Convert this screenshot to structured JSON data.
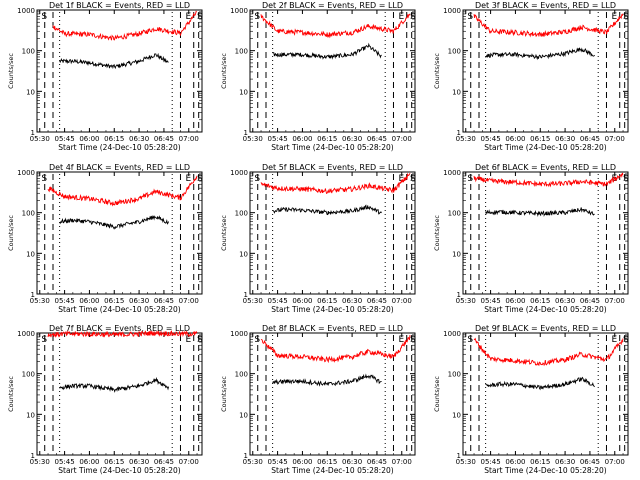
{
  "common": {
    "xlabel": "Start Time (24-Dec-10 05:28:20)",
    "ylabel": "Counts/sec",
    "x_ticks": [
      "05:30",
      "05:45",
      "06:00",
      "06:15",
      "06:30",
      "06:45",
      "07:00"
    ],
    "y_ticks": [
      "1",
      "10",
      "100",
      "1000"
    ],
    "y_scale": "log",
    "ylim": [
      1,
      1000
    ],
    "xlim_minutes": [
      "05:28:20",
      "07:08:00"
    ],
    "series_colors": {
      "events": "#000000",
      "lld": "#ff0000"
    },
    "marker_labels": {
      "s": "S",
      "e": "E"
    },
    "grid": false
  },
  "chart_data": [
    {
      "type": "line",
      "title": "Det 1f BLACK = Events, RED = LLD",
      "series": [
        {
          "name": "Events",
          "x": [
            "05:42",
            "05:50",
            "06:00",
            "06:15",
            "06:30",
            "06:40",
            "06:48"
          ],
          "values": [
            55,
            55,
            50,
            40,
            55,
            80,
            50
          ]
        },
        {
          "name": "LLD",
          "x": [
            "05:38",
            "05:45",
            "06:00",
            "06:15",
            "06:30",
            "06:40",
            "06:55",
            "07:05"
          ],
          "values": [
            400,
            260,
            250,
            200,
            260,
            350,
            270,
            900
          ]
        }
      ],
      "markers": [
        "S",
        "E",
        "S"
      ]
    },
    {
      "type": "line",
      "title": "Det 2f BLACK = Events, RED = LLD",
      "series": [
        {
          "name": "Events",
          "x": [
            "05:42",
            "05:50",
            "06:00",
            "06:15",
            "06:30",
            "06:40",
            "06:48"
          ],
          "values": [
            80,
            80,
            80,
            70,
            80,
            130,
            70
          ]
        },
        {
          "name": "LLD",
          "x": [
            "05:35",
            "05:45",
            "06:00",
            "06:15",
            "06:30",
            "06:40",
            "06:55",
            "07:05"
          ],
          "values": [
            700,
            300,
            280,
            250,
            280,
            400,
            300,
            800
          ]
        }
      ],
      "markers": [
        "S",
        "E",
        "S"
      ]
    },
    {
      "type": "line",
      "title": "Det 3f BLACK = Events, RED = LLD",
      "series": [
        {
          "name": "Events",
          "x": [
            "05:42",
            "05:50",
            "06:00",
            "06:15",
            "06:30",
            "06:40",
            "06:48"
          ],
          "values": [
            75,
            80,
            80,
            70,
            85,
            110,
            75
          ]
        },
        {
          "name": "LLD",
          "x": [
            "05:35",
            "05:45",
            "06:00",
            "06:15",
            "06:30",
            "06:40",
            "06:55",
            "07:05"
          ],
          "values": [
            700,
            300,
            280,
            250,
            290,
            380,
            280,
            800
          ]
        }
      ],
      "markers": [
        "S",
        "E",
        "S"
      ]
    },
    {
      "type": "line",
      "title": "Det 4f BLACK = Events, RED = LLD",
      "series": [
        {
          "name": "Events",
          "x": [
            "05:42",
            "05:50",
            "06:00",
            "06:15",
            "06:30",
            "06:40",
            "06:48"
          ],
          "values": [
            60,
            65,
            60,
            45,
            60,
            80,
            55
          ]
        },
        {
          "name": "LLD",
          "x": [
            "05:35",
            "05:45",
            "06:00",
            "06:15",
            "06:30",
            "06:40",
            "06:55",
            "07:05"
          ],
          "values": [
            400,
            250,
            220,
            170,
            220,
            330,
            230,
            800
          ]
        }
      ],
      "markers": [
        "S",
        "E",
        "S"
      ]
    },
    {
      "type": "line",
      "title": "Det 5f BLACK = Events, RED = LLD",
      "series": [
        {
          "name": "Events",
          "x": [
            "05:42",
            "05:50",
            "06:00",
            "06:15",
            "06:30",
            "06:40",
            "06:48"
          ],
          "values": [
            110,
            120,
            115,
            100,
            110,
            140,
            95
          ]
        },
        {
          "name": "LLD",
          "x": [
            "05:35",
            "05:45",
            "06:00",
            "06:15",
            "06:30",
            "06:40",
            "06:55",
            "07:05"
          ],
          "values": [
            500,
            400,
            380,
            340,
            380,
            460,
            350,
            900
          ]
        }
      ],
      "markers": [
        "S",
        "E",
        "S"
      ]
    },
    {
      "type": "line",
      "title": "Det 6f BLACK = Events, RED = LLD",
      "series": [
        {
          "name": "Events",
          "x": [
            "05:42",
            "05:50",
            "06:00",
            "06:15",
            "06:30",
            "06:40",
            "06:48"
          ],
          "values": [
            100,
            105,
            100,
            95,
            100,
            120,
            90
          ]
        },
        {
          "name": "LLD",
          "x": [
            "05:35",
            "05:45",
            "06:00",
            "06:15",
            "06:30",
            "06:40",
            "06:55",
            "07:05"
          ],
          "values": [
            700,
            600,
            560,
            500,
            520,
            580,
            500,
            900
          ]
        }
      ],
      "markers": [
        "S",
        "E",
        "S"
      ]
    },
    {
      "type": "line",
      "title": "Det 7f BLACK = Events, RED = LLD",
      "series": [
        {
          "name": "Events",
          "x": [
            "05:42",
            "05:50",
            "06:00",
            "06:15",
            "06:30",
            "06:40",
            "06:48"
          ],
          "values": [
            45,
            50,
            50,
            40,
            50,
            70,
            45
          ]
        },
        {
          "name": "LLD",
          "x": [
            "05:35",
            "05:45",
            "06:00",
            "06:15",
            "06:30",
            "06:40",
            "06:55",
            "07:05"
          ],
          "values": [
            900,
            950,
            950,
            900,
            950,
            1000,
            950,
            950
          ]
        }
      ],
      "markers": [
        "S",
        "E",
        "S"
      ]
    },
    {
      "type": "line",
      "title": "Det 8f BLACK = Events, RED = LLD",
      "series": [
        {
          "name": "Events",
          "x": [
            "05:42",
            "05:50",
            "06:00",
            "06:15",
            "06:30",
            "06:40",
            "06:48"
          ],
          "values": [
            60,
            65,
            65,
            55,
            65,
            90,
            60
          ]
        },
        {
          "name": "LLD",
          "x": [
            "05:35",
            "05:45",
            "06:00",
            "06:15",
            "06:30",
            "06:40",
            "06:55",
            "07:05"
          ],
          "values": [
            700,
            280,
            260,
            220,
            260,
            350,
            260,
            800
          ]
        }
      ],
      "markers": [
        "S",
        "E",
        "S"
      ]
    },
    {
      "type": "line",
      "title": "Det 9f BLACK = Events, RED = LLD",
      "series": [
        {
          "name": "Events",
          "x": [
            "05:42",
            "05:50",
            "06:00",
            "06:15",
            "06:30",
            "06:40",
            "06:48"
          ],
          "values": [
            50,
            55,
            55,
            45,
            55,
            75,
            50
          ]
        },
        {
          "name": "LLD",
          "x": [
            "05:35",
            "05:45",
            "06:00",
            "06:15",
            "06:30",
            "06:40",
            "06:55",
            "07:05"
          ],
          "values": [
            700,
            230,
            210,
            180,
            220,
            300,
            220,
            700
          ]
        }
      ],
      "markers": [
        "S",
        "E",
        "S"
      ]
    }
  ]
}
